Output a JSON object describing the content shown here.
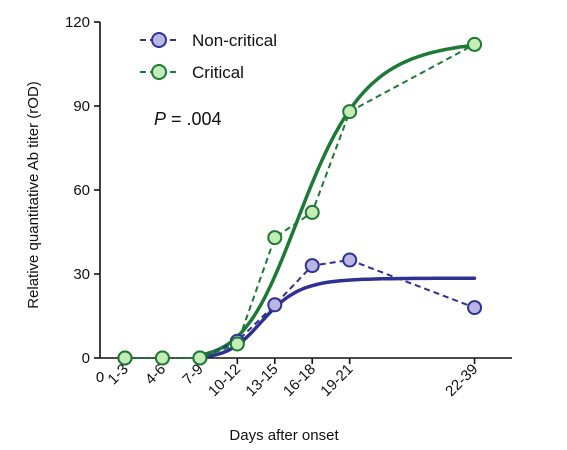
{
  "chart_data": {
    "type": "line",
    "xlabel": "Days after onset",
    "ylabel": "Relative quantitative Ab titer (rOD)",
    "ylim": [
      0,
      120
    ],
    "yticks": [
      0,
      30,
      60,
      90,
      120
    ],
    "x_origin_label": "0",
    "categories": [
      "1-3",
      "4-6",
      "7-9",
      "10-12",
      "13-15",
      "16-18",
      "19-21",
      "22-39"
    ],
    "category_days": [
      2,
      5,
      8,
      11,
      14,
      17,
      20,
      30
    ],
    "xlim": [
      0,
      33
    ],
    "legend_position": "top-left",
    "annotation": {
      "italic": "P",
      "text": " = .004"
    },
    "series": [
      {
        "name": "Non-critical",
        "color": "#2e3192",
        "marker_fill": "#b9b6e3",
        "values": [
          0,
          0,
          0,
          6,
          19,
          33,
          35,
          18
        ],
        "fit": {
          "bottom": 0,
          "top": 28.5,
          "ec50": 13.2,
          "hill": 9,
          "x_start": 8,
          "x_end": 30
        }
      },
      {
        "name": "Critical",
        "color": "#1d7a35",
        "marker_fill": "#c3ecb6",
        "values": [
          0,
          0,
          0,
          5,
          43,
          52,
          88,
          112
        ],
        "fit": {
          "bottom": 0,
          "top": 114,
          "ec50": 16.5,
          "hill": 6.5,
          "x_start": 8,
          "x_end": 30
        }
      }
    ]
  }
}
